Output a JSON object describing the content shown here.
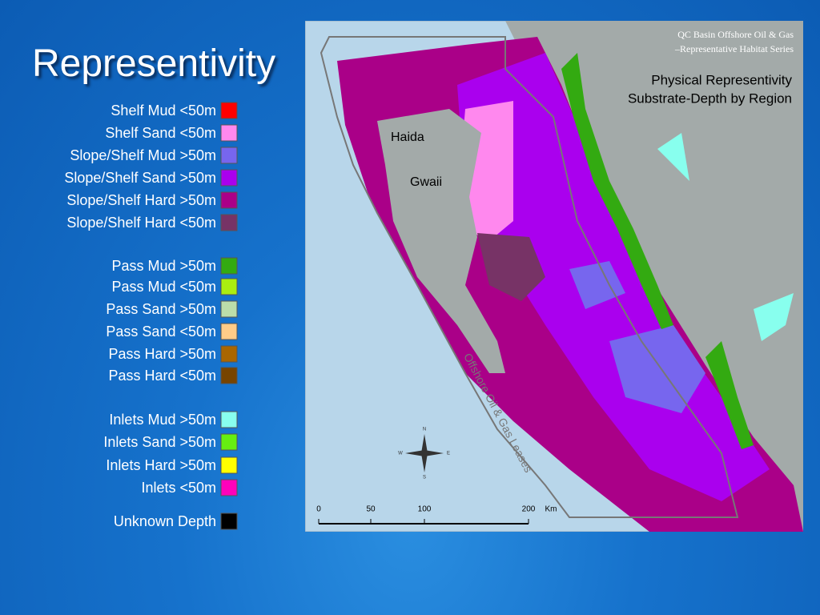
{
  "title": "Representivity",
  "legend": [
    {
      "label": "Shelf Mud <50m",
      "color": "#ff0000"
    },
    {
      "label": "Shelf Sand <50m",
      "color": "#ff88ee"
    },
    {
      "label": "Slope/Shelf Mud >50m",
      "color": "#7766ee"
    },
    {
      "label": "Slope/Shelf Sand >50m",
      "color": "#aa00ee"
    },
    {
      "label": "Slope/Shelf Hard >50m",
      "color": "#aa0088"
    },
    {
      "label": "Slope/Shelf Hard <50m",
      "color": "#773366"
    },
    {
      "label": "Pass Mud >50m",
      "color": "#33aa11"
    },
    {
      "label": "Pass Mud <50m",
      "color": "#aaee11"
    },
    {
      "label": "Pass Sand >50m",
      "color": "#bbddaa"
    },
    {
      "label": "Pass Sand <50m",
      "color": "#ffcc88"
    },
    {
      "label": "Pass Hard >50m",
      "color": "#aa6600"
    },
    {
      "label": "Pass Hard <50m",
      "color": "#774400"
    },
    {
      "label": "Inlets Mud >50m",
      "color": "#88ffee"
    },
    {
      "label": "Inlets Sand >50m",
      "color": "#66ee11"
    },
    {
      "label": "Inlets Hard >50m",
      "color": "#ffff00"
    },
    {
      "label": "Inlets <50m",
      "color": "#ff00bb"
    },
    {
      "label": "Unknown Depth",
      "color": "#000000"
    }
  ],
  "map": {
    "credit_line1": "QC Basin Offshore Oil & Gas",
    "credit_line2": "–Representative Habitat Series",
    "heading_line1": "Physical Representivity",
    "heading_line2": "Substrate-Depth by Region",
    "island_line1": "Haida",
    "island_line2": "Gwaii",
    "leases_label": "Offshore Oil & Gas Leases",
    "compass": [
      "N",
      "E",
      "S",
      "W"
    ],
    "scale_labels": [
      "0",
      "50",
      "100",
      "200"
    ],
    "scale_unit": "Km"
  }
}
